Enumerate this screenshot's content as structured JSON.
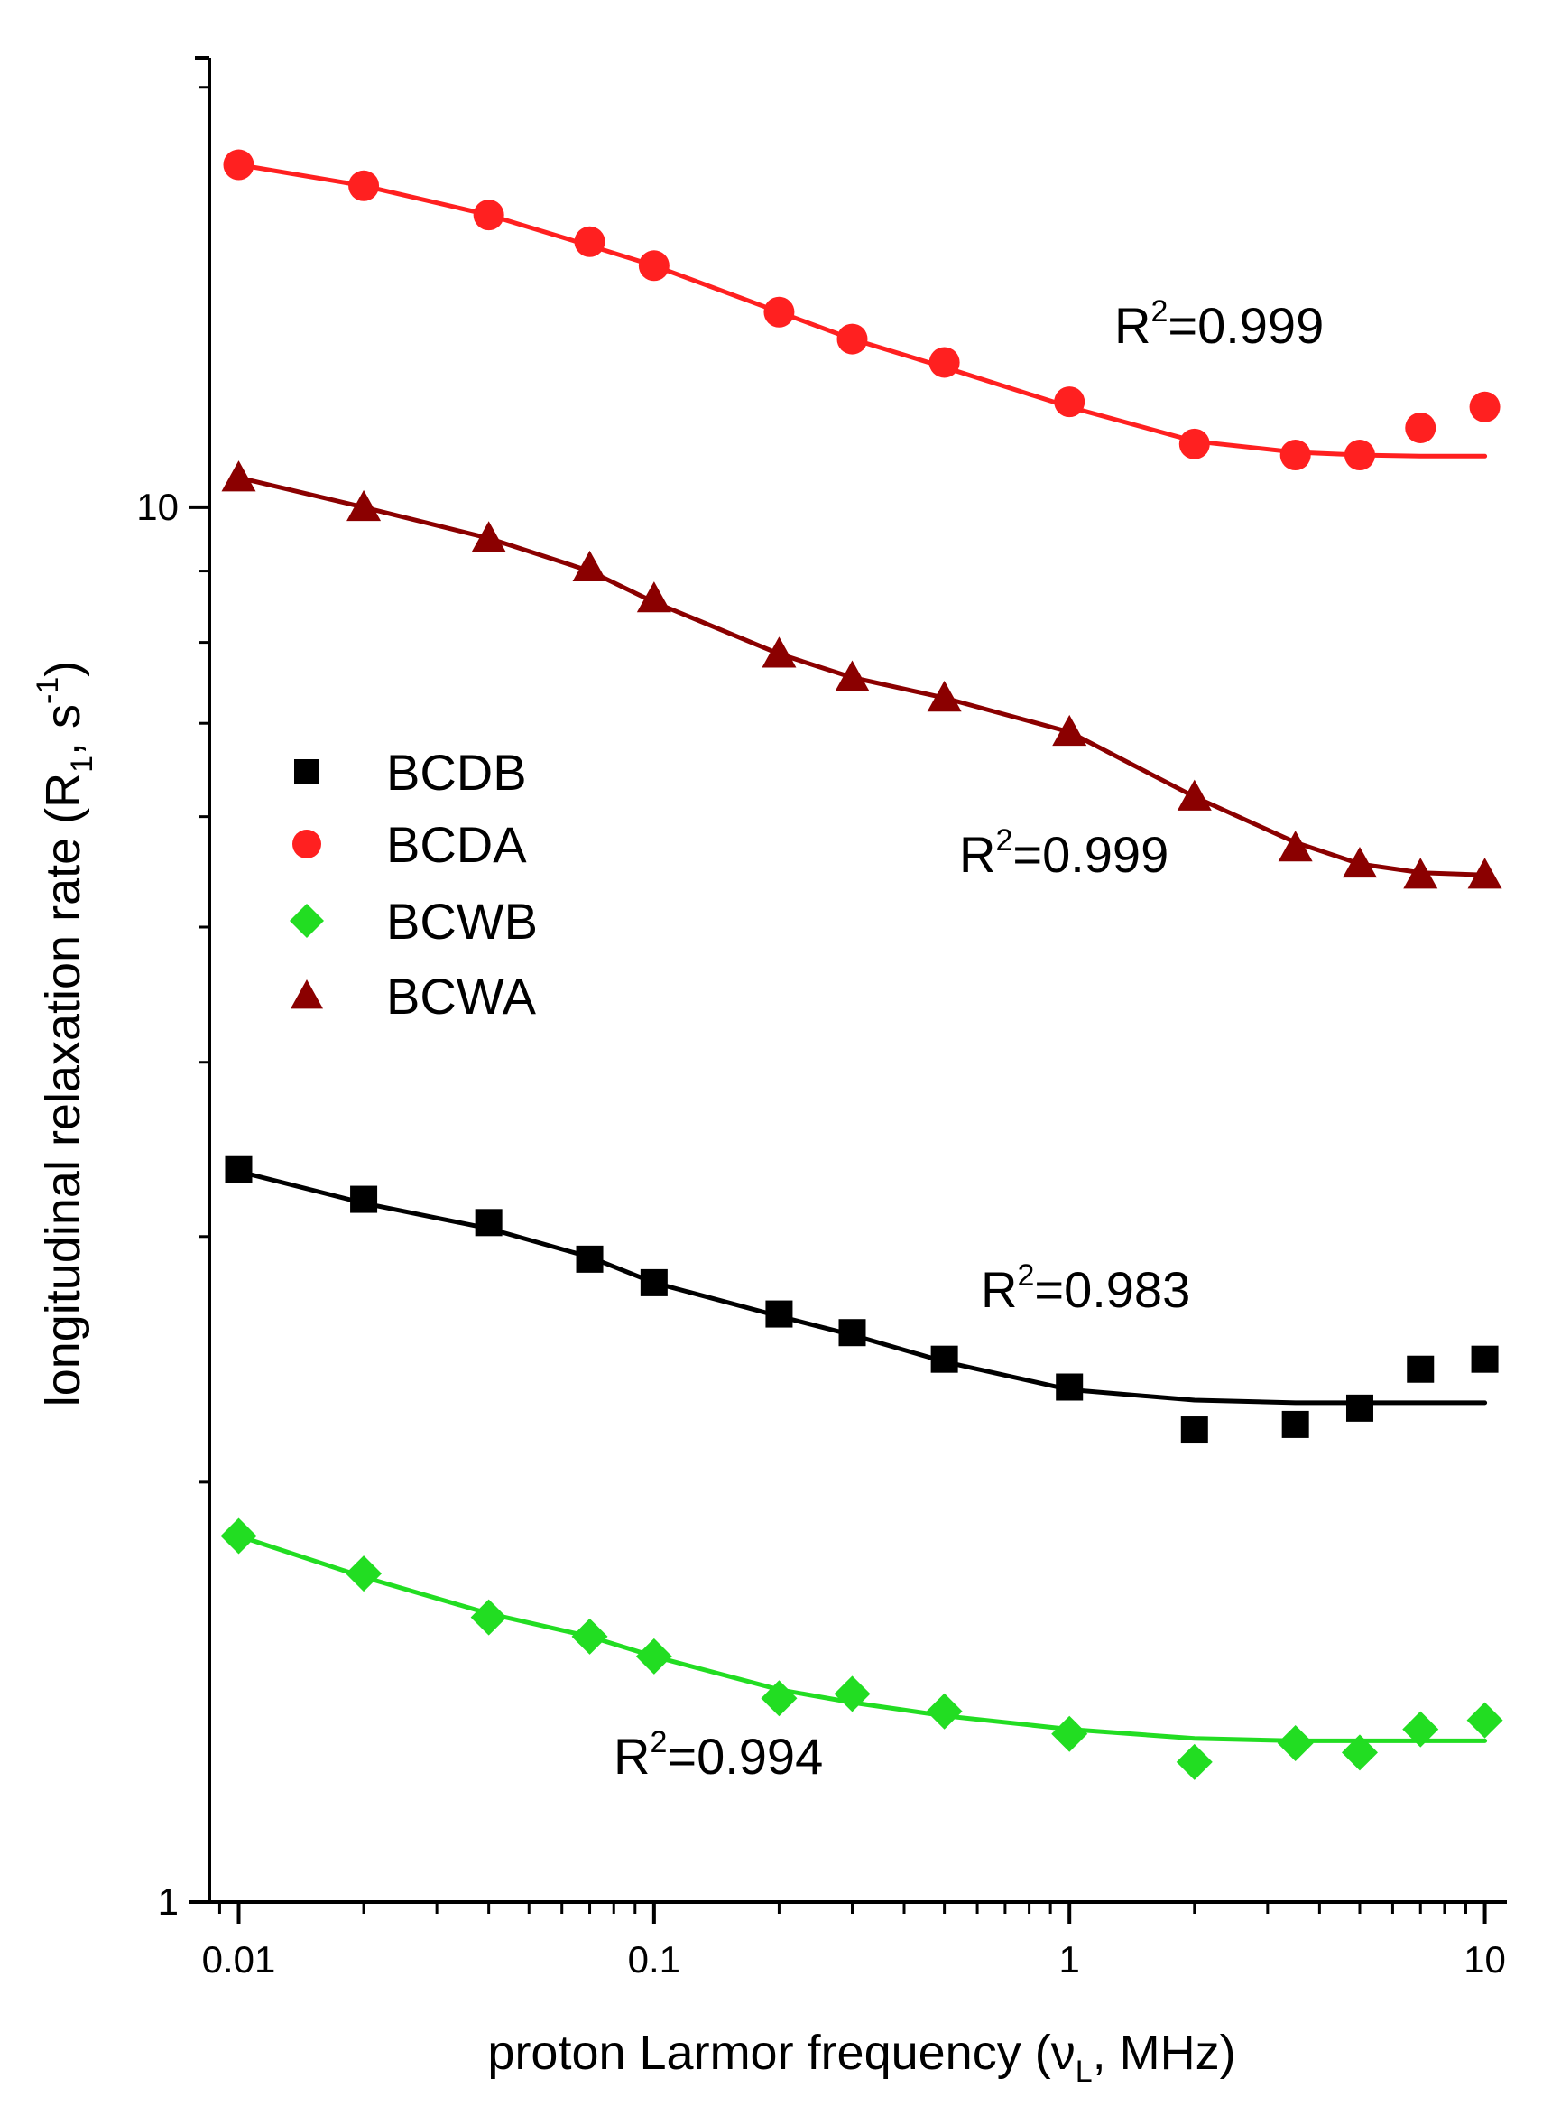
{
  "chart_data": {
    "type": "scatter",
    "title": "",
    "xlabel": "proton Larmor frequency (νL, MHz)",
    "ylabel": "longitudinal relaxation rate (R1, s-1)",
    "xlabel_parts": {
      "main": "proton Larmor frequency (ν",
      "sub": "L",
      "end": ", MHz)"
    },
    "ylabel_parts": {
      "main": "longitudinal relaxation rate (R",
      "sub": "1",
      "mid": ", s",
      "sup": "-1",
      "end": ")"
    },
    "xscale": "log",
    "yscale": "log",
    "xlim": [
      0.0085,
      11.3
    ],
    "ylim": [
      1,
      21
    ],
    "xticks": [
      0.01,
      0.1,
      1,
      10
    ],
    "xtick_labels": [
      "0.01",
      "0.1",
      "1",
      "10"
    ],
    "yticks": [
      1,
      10
    ],
    "ytick_labels": [
      "1",
      "10"
    ],
    "grid": false,
    "legend_position": "left-middle",
    "series": [
      {
        "name": "BCDB",
        "marker": "square",
        "color": "#000000",
        "x": [
          0.01,
          0.02,
          0.04,
          0.07,
          0.1,
          0.2,
          0.3,
          0.5,
          1,
          2,
          3.5,
          5,
          7,
          10
        ],
        "y": [
          3.35,
          3.19,
          3.07,
          2.89,
          2.78,
          2.64,
          2.56,
          2.45,
          2.34,
          2.18,
          2.2,
          2.26,
          2.41,
          2.45
        ],
        "fit": [
          [
            0.01,
            3.34
          ],
          [
            0.02,
            3.17
          ],
          [
            0.04,
            3.04
          ],
          [
            0.07,
            2.9
          ],
          [
            0.1,
            2.78
          ],
          [
            0.2,
            2.63
          ],
          [
            0.3,
            2.55
          ],
          [
            0.5,
            2.44
          ],
          [
            1,
            2.33
          ],
          [
            2,
            2.29
          ],
          [
            3.5,
            2.28
          ],
          [
            5,
            2.28
          ],
          [
            7,
            2.28
          ],
          [
            10,
            2.28
          ]
        ],
        "r2_label": "R2=0.983",
        "r2_parts": {
          "pre": "R",
          "sup": "2",
          "post": "=0.983"
        }
      },
      {
        "name": "BCDA",
        "marker": "circle",
        "color": "#ff2020",
        "x": [
          0.01,
          0.02,
          0.04,
          0.07,
          0.1,
          0.2,
          0.3,
          0.5,
          1,
          2,
          3.5,
          5,
          7,
          10
        ],
        "y": [
          17.6,
          17.0,
          16.2,
          15.5,
          14.9,
          13.8,
          13.2,
          12.7,
          11.9,
          11.1,
          10.9,
          10.9,
          11.4,
          11.8
        ],
        "fit": [
          [
            0.01,
            17.6
          ],
          [
            0.02,
            17.0
          ],
          [
            0.04,
            16.2
          ],
          [
            0.07,
            15.4
          ],
          [
            0.1,
            14.9
          ],
          [
            0.2,
            13.8
          ],
          [
            0.3,
            13.2
          ],
          [
            0.5,
            12.6
          ],
          [
            1,
            11.8
          ],
          [
            2,
            11.15
          ],
          [
            3.5,
            10.95
          ],
          [
            5,
            10.9
          ],
          [
            7,
            10.88
          ],
          [
            10,
            10.88
          ]
        ],
        "r2_label": "R2=0.999",
        "r2_parts": {
          "pre": "R",
          "sup": "2",
          "post": "=0.999"
        }
      },
      {
        "name": "BCWB",
        "marker": "diamond",
        "color": "#22dd22",
        "x": [
          0.01,
          0.02,
          0.04,
          0.07,
          0.1,
          0.2,
          0.3,
          0.5,
          1,
          2,
          3.5,
          5,
          7,
          10
        ],
        "y": [
          1.83,
          1.72,
          1.6,
          1.55,
          1.5,
          1.4,
          1.41,
          1.37,
          1.32,
          1.26,
          1.3,
          1.28,
          1.33,
          1.35
        ],
        "fit": [
          [
            0.01,
            1.83
          ],
          [
            0.02,
            1.71
          ],
          [
            0.04,
            1.61
          ],
          [
            0.07,
            1.55
          ],
          [
            0.1,
            1.5
          ],
          [
            0.2,
            1.42
          ],
          [
            0.3,
            1.39
          ],
          [
            0.5,
            1.36
          ],
          [
            1,
            1.33
          ],
          [
            2,
            1.31
          ],
          [
            3.5,
            1.305
          ],
          [
            5,
            1.305
          ],
          [
            7,
            1.305
          ],
          [
            10,
            1.305
          ]
        ],
        "r2_label": "R2=0.994",
        "r2_parts": {
          "pre": "R",
          "sup": "2",
          "post": "=0.994"
        }
      },
      {
        "name": "BCWA",
        "marker": "triangle",
        "color": "#8b0000",
        "x": [
          0.01,
          0.02,
          0.04,
          0.07,
          0.1,
          0.2,
          0.3,
          0.5,
          1,
          2,
          3.5,
          5,
          7,
          10
        ],
        "y": [
          10.5,
          10.0,
          9.5,
          9.05,
          8.6,
          7.85,
          7.55,
          7.3,
          6.9,
          6.2,
          5.7,
          5.55,
          5.45,
          5.45
        ],
        "fit": [
          [
            0.01,
            10.5
          ],
          [
            0.02,
            10.0
          ],
          [
            0.04,
            9.5
          ],
          [
            0.07,
            9.0
          ],
          [
            0.1,
            8.55
          ],
          [
            0.2,
            7.85
          ],
          [
            0.3,
            7.55
          ],
          [
            0.5,
            7.3
          ],
          [
            1,
            6.9
          ],
          [
            2,
            6.2
          ],
          [
            3.5,
            5.75
          ],
          [
            5,
            5.55
          ],
          [
            7,
            5.47
          ],
          [
            10,
            5.45
          ]
        ],
        "r2_label": "R2=0.999",
        "r2_parts": {
          "pre": "R",
          "sup": "2",
          "post": "=0.999"
        }
      }
    ]
  }
}
